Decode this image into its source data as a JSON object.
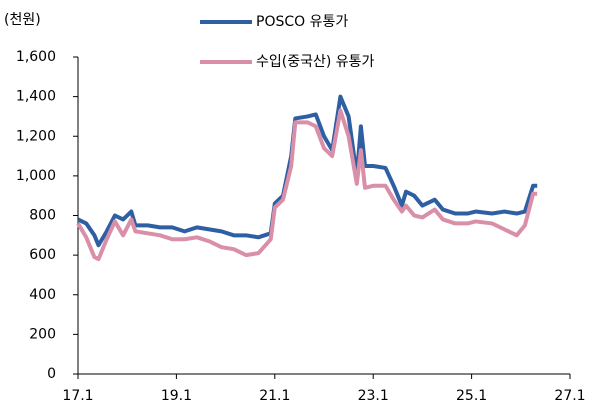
{
  "chart_data": {
    "type": "line",
    "y_label": "(천원)",
    "x": [
      "17.1",
      "17.3",
      "17.5",
      "17.6",
      "17.8",
      "17.10",
      "17.12",
      "18.2",
      "18.3",
      "18.6",
      "18.9",
      "18.12",
      "19.3",
      "19.6",
      "19.9",
      "19.12",
      "20.3",
      "20.6",
      "20.9",
      "20.12",
      "21.1",
      "21.3",
      "21.5",
      "21.6",
      "21.9",
      "21.11",
      "22.1",
      "22.3",
      "22.5",
      "22.7",
      "22.9",
      "22.10",
      "22.11",
      "23.1",
      "23.4",
      "23.6",
      "23.8",
      "23.9",
      "23.11",
      "24.1",
      "24.4",
      "24.6",
      "24.9",
      "24.12",
      "25.2",
      "25.6",
      "25.9",
      "25.12",
      "26.2",
      "26.4",
      "26.5"
    ],
    "series": [
      {
        "name": "POSCO 유통가",
        "color": "#2e5fa3",
        "values": [
          780,
          760,
          700,
          650,
          720,
          800,
          780,
          820,
          750,
          750,
          740,
          740,
          720,
          740,
          730,
          720,
          700,
          700,
          690,
          710,
          860,
          900,
          1100,
          1290,
          1300,
          1310,
          1200,
          1130,
          1400,
          1300,
          1000,
          1250,
          1050,
          1050,
          1040,
          950,
          850,
          920,
          900,
          850,
          880,
          830,
          810,
          810,
          820,
          810,
          820,
          810,
          820,
          950,
          950
        ]
      },
      {
        "name": "수입(중국산) 유통가",
        "color": "#d98fa8",
        "values": [
          760,
          690,
          590,
          580,
          680,
          770,
          700,
          780,
          720,
          710,
          700,
          680,
          680,
          690,
          670,
          640,
          630,
          600,
          610,
          680,
          840,
          880,
          1050,
          1270,
          1270,
          1250,
          1140,
          1100,
          1330,
          1200,
          960,
          1130,
          940,
          950,
          950,
          880,
          820,
          850,
          800,
          790,
          830,
          780,
          760,
          760,
          770,
          760,
          730,
          700,
          750,
          910,
          910
        ]
      }
    ],
    "xlim": [
      "17.1",
      "27.1"
    ],
    "xticks": [
      "17.1",
      "19.1",
      "21.1",
      "23.1",
      "25.1",
      "27.1"
    ],
    "ylim": [
      0,
      1600
    ],
    "yticks": [
      0,
      200,
      400,
      600,
      800,
      {
        "value": 1000,
        "label": "1,000"
      },
      {
        "value": 1200,
        "label": "1,200"
      },
      {
        "value": 1400,
        "label": "1,400"
      },
      {
        "value": 1600,
        "label": "1,600"
      }
    ],
    "grid": false
  }
}
